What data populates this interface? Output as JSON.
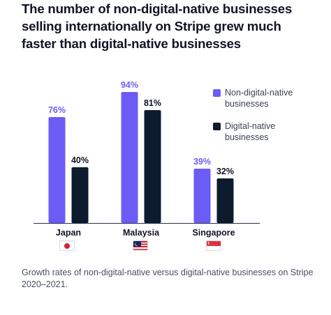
{
  "chart_data": {
    "type": "bar",
    "title": "The number of non-digital-native businesses selling internationally on Stripe grew much faster than digital-native businesses",
    "categories": [
      "Japan",
      "Malaysia",
      "Singapore"
    ],
    "series": [
      {
        "name": "Non-digital-native businesses",
        "values": [
          76,
          94,
          39
        ],
        "labels": [
          "76%",
          "94%",
          "39%"
        ],
        "color": "#6c5cf6"
      },
      {
        "name": "Digital-native businesses",
        "values": [
          40,
          81,
          32
        ],
        "labels": [
          "40%",
          "81%",
          "32%"
        ],
        "color": "#0d1b2e"
      }
    ],
    "ylim": [
      0,
      100
    ],
    "xlabel": "",
    "ylabel": "",
    "grid": false,
    "legend": "right",
    "caption": "Growth rates of non-digital-native versus digital-native businesses on Stripe 2020–2021.",
    "flags": [
      "japan-flag-icon",
      "malaysia-flag-icon",
      "singapore-flag-icon"
    ]
  }
}
